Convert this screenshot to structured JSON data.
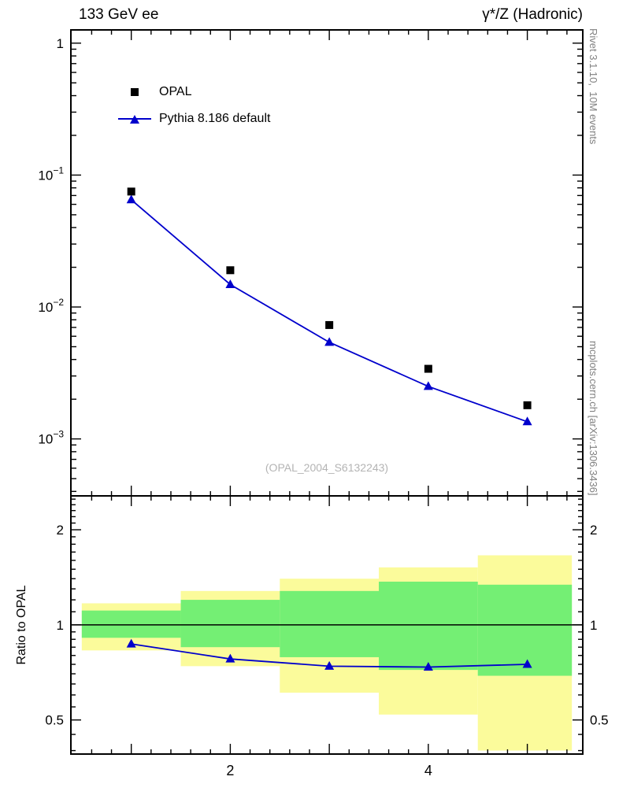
{
  "chart_data": {
    "type": "line",
    "title_left": "133 GeV ee",
    "title_right": "γ*/Z (Hadronic)",
    "right_label_top": "Rivet 3.1.10,  10M events",
    "right_label_bottom": "mcplots.cern.ch [arXiv:1306.3436]",
    "watermark": "(OPAL_2004_S6132243)",
    "legend_position": "top-left",
    "x": [
      1,
      2,
      3,
      4,
      5
    ],
    "series": [
      {
        "name": "OPAL",
        "marker": "square",
        "color": "#000000",
        "values": [
          0.075,
          0.019,
          0.0073,
          0.0034,
          0.0018
        ]
      },
      {
        "name": "Pythia 8.186 default",
        "marker": "triangle",
        "color": "#0000cc",
        "line": true,
        "values": [
          0.065,
          0.0148,
          0.0054,
          0.0025,
          0.00135
        ]
      }
    ],
    "main_axis": {
      "xlim": [
        0.39,
        5.56
      ],
      "ylim": [
        0.00037,
        1.26
      ],
      "yscale": "log",
      "grid": false,
      "yticks": [
        {
          "v": 1,
          "t": "1"
        },
        {
          "v": 0.1,
          "m": "10",
          "e": "−1"
        },
        {
          "v": 0.01,
          "m": "10",
          "e": "−2"
        },
        {
          "v": 0.001,
          "m": "10",
          "e": "−3"
        }
      ]
    },
    "xticks_labeled": [
      2,
      4
    ],
    "ratio": {
      "ylabel": "Ratio to OPAL",
      "yscale": "log",
      "ylim": [
        0.39,
        2.56
      ],
      "yticks": [
        {
          "v": 0.5,
          "t": "0.5"
        },
        {
          "v": 1,
          "t": "1"
        },
        {
          "v": 2,
          "t": "2"
        }
      ],
      "reference_line": 1,
      "values": [
        0.87,
        0.78,
        0.74,
        0.735,
        0.75
      ],
      "bins": [
        [
          0.5,
          1.5
        ],
        [
          1.5,
          2.5
        ],
        [
          2.5,
          3.5
        ],
        [
          3.5,
          4.5
        ],
        [
          4.5,
          5.45
        ]
      ],
      "band_yellow": [
        [
          0.83,
          1.17
        ],
        [
          0.74,
          1.28
        ],
        [
          0.61,
          1.4
        ],
        [
          0.52,
          1.52
        ],
        [
          0.4,
          1.66
        ]
      ],
      "band_green": [
        [
          0.91,
          1.11
        ],
        [
          0.85,
          1.2
        ],
        [
          0.79,
          1.28
        ],
        [
          0.72,
          1.37
        ],
        [
          0.69,
          1.34
        ]
      ],
      "colors": {
        "yellow": "#fbfb9b",
        "green": "#74ef74"
      }
    }
  }
}
